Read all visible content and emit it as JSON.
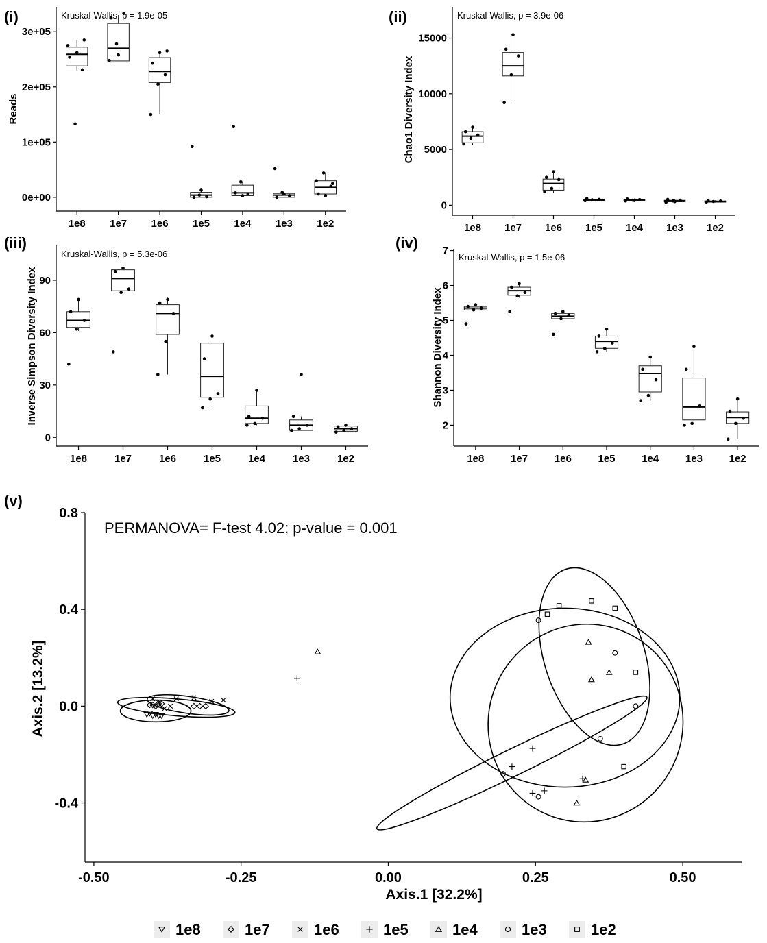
{
  "chart_data": [
    {
      "panel": "(i)",
      "type": "box",
      "annotation": "Kruskal-Wallis, p = 1.9e-05",
      "ylabel": "Reads",
      "xlabel": "",
      "categories": [
        "1e8",
        "1e7",
        "1e6",
        "1e5",
        "1e4",
        "1e3",
        "1e2"
      ],
      "ylim": [
        -25000,
        345000
      ],
      "yticks": [
        {
          "v": 0,
          "t": "0e+00"
        },
        {
          "v": 100000,
          "t": "1e+05"
        },
        {
          "v": 200000,
          "t": "2e+05"
        },
        {
          "v": 300000,
          "t": "3e+05"
        }
      ],
      "boxes": [
        {
          "q1": 238000,
          "med": 259000,
          "q3": 272000,
          "lo": 230000,
          "hi": 285000
        },
        {
          "q1": 247000,
          "med": 270000,
          "q3": 315000,
          "lo": 247000,
          "hi": 330000
        },
        {
          "q1": 208000,
          "med": 228000,
          "q3": 253000,
          "lo": 150000,
          "hi": 265000
        },
        {
          "q1": 0,
          "med": 4000,
          "q3": 9000,
          "lo": 0,
          "hi": 12000
        },
        {
          "q1": 3000,
          "med": 8000,
          "q3": 22000,
          "lo": 3000,
          "hi": 28000
        },
        {
          "q1": 0,
          "med": 4000,
          "q3": 7000,
          "lo": 0,
          "hi": 9000
        },
        {
          "q1": 6000,
          "med": 18000,
          "q3": 30000,
          "lo": 3000,
          "hi": 45000
        }
      ],
      "points": [
        [
          275000,
          133000,
          231000,
          254000,
          262000,
          285000
        ],
        [
          248000,
          278000,
          333000,
          325000,
          258000
        ],
        [
          150000,
          205000,
          222000,
          243000,
          262000,
          265000
        ],
        [
          92000,
          4000,
          1000,
          0,
          13000
        ],
        [
          128000,
          28000,
          6000,
          8000,
          3000
        ],
        [
          52000,
          9000,
          3000,
          0,
          6000
        ],
        [
          30000,
          44000,
          20000,
          6000,
          3000,
          25000
        ]
      ]
    },
    {
      "panel": "(ii)",
      "type": "box",
      "annotation": "Kruskal-Wallis, p = 3.9e-06",
      "ylabel": "Chao1 Diversity Index",
      "xlabel": "",
      "categories": [
        "1e8",
        "1e7",
        "1e6",
        "1e5",
        "1e4",
        "1e3",
        "1e2"
      ],
      "ylim": [
        -900,
        17800
      ],
      "yticks": [
        {
          "v": 0,
          "t": "0"
        },
        {
          "v": 5000,
          "t": "5000"
        },
        {
          "v": 10000,
          "t": "10000"
        },
        {
          "v": 15000,
          "t": "15000"
        }
      ],
      "boxes": [
        {
          "q1": 5600,
          "med": 6200,
          "q3": 6600,
          "lo": 5400,
          "hi": 7000
        },
        {
          "q1": 11600,
          "med": 12500,
          "q3": 13700,
          "lo": 9200,
          "hi": 15300
        },
        {
          "q1": 1350,
          "med": 1950,
          "q3": 2350,
          "lo": 1100,
          "hi": 2950
        },
        {
          "q1": 420,
          "med": 480,
          "q3": 540,
          "lo": 380,
          "hi": 620
        },
        {
          "q1": 380,
          "med": 460,
          "q3": 520,
          "lo": 320,
          "hi": 600
        },
        {
          "q1": 300,
          "med": 370,
          "q3": 440,
          "lo": 200,
          "hi": 540
        },
        {
          "q1": 270,
          "med": 320,
          "q3": 380,
          "lo": 230,
          "hi": 440
        }
      ],
      "points": [
        [
          5500,
          6000,
          6300,
          6600,
          7000
        ],
        [
          9200,
          11700,
          13400,
          14000,
          15300
        ],
        [
          1200,
          1500,
          2300,
          2500,
          3000
        ],
        [
          400,
          480,
          520,
          600
        ],
        [
          380,
          450,
          500,
          560,
          420
        ],
        [
          250,
          380,
          450,
          520,
          320
        ],
        [
          280,
          330,
          370,
          420
        ]
      ]
    },
    {
      "panel": "(iii)",
      "type": "box",
      "annotation": "Kruskal-Wallis, p = 5.3e-06",
      "ylabel": "Inverse Simpson Diversity Index",
      "xlabel": "",
      "categories": [
        "1e8",
        "1e7",
        "1e6",
        "1e5",
        "1e4",
        "1e3",
        "1e2"
      ],
      "ylim": [
        -5,
        110
      ],
      "yticks": [
        {
          "v": 0,
          "t": "0"
        },
        {
          "v": 30,
          "t": "30"
        },
        {
          "v": 60,
          "t": "60"
        },
        {
          "v": 90,
          "t": "90"
        }
      ],
      "boxes": [
        {
          "q1": 63,
          "med": 67,
          "q3": 72,
          "lo": 61,
          "hi": 79
        },
        {
          "q1": 84,
          "med": 91,
          "q3": 96,
          "lo": 83,
          "hi": 97
        },
        {
          "q1": 59,
          "med": 71,
          "q3": 76,
          "lo": 36,
          "hi": 80
        },
        {
          "q1": 23,
          "med": 35,
          "q3": 54,
          "lo": 17,
          "hi": 59
        },
        {
          "q1": 8,
          "med": 11,
          "q3": 18,
          "lo": 7,
          "hi": 27
        },
        {
          "q1": 4,
          "med": 7,
          "q3": 10,
          "lo": 4,
          "hi": 12
        },
        {
          "q1": 3.5,
          "med": 5,
          "q3": 6.5,
          "lo": 3,
          "hi": 7
        }
      ],
      "points": [
        [
          42,
          62,
          67,
          72,
          79
        ],
        [
          49,
          83,
          85,
          95,
          97
        ],
        [
          36,
          55,
          71,
          77,
          79
        ],
        [
          17,
          22,
          25,
          45,
          58
        ],
        [
          7,
          8,
          11,
          12,
          27
        ],
        [
          4,
          5,
          7,
          12,
          36
        ],
        [
          3,
          4,
          5,
          6,
          7
        ]
      ]
    },
    {
      "panel": "(iv)",
      "type": "box",
      "annotation": "Kruskal-Wallis, p = 1.5e-06",
      "ylabel": "Shannon Diversity Index",
      "xlabel": "",
      "categories": [
        "1e8",
        "1e7",
        "1e6",
        "1e5",
        "1e4",
        "1e3",
        "1e2"
      ],
      "ylim": [
        1.4,
        7.05
      ],
      "yticks": [
        {
          "v": 2,
          "t": "2"
        },
        {
          "v": 3,
          "t": "3"
        },
        {
          "v": 4,
          "t": "4"
        },
        {
          "v": 5,
          "t": "5"
        },
        {
          "v": 6,
          "t": "6"
        },
        {
          "v": 7,
          "t": "7"
        }
      ],
      "boxes": [
        {
          "q1": 5.3,
          "med": 5.35,
          "q3": 5.4,
          "lo": 5.3,
          "hi": 5.45
        },
        {
          "q1": 5.72,
          "med": 5.85,
          "q3": 5.95,
          "lo": 5.65,
          "hi": 6.05
        },
        {
          "q1": 5.05,
          "med": 5.12,
          "q3": 5.2,
          "lo": 5.0,
          "hi": 5.25
        },
        {
          "q1": 4.2,
          "med": 4.4,
          "q3": 4.55,
          "lo": 4.1,
          "hi": 4.75
        },
        {
          "q1": 2.95,
          "med": 3.48,
          "q3": 3.7,
          "lo": 2.7,
          "hi": 3.95
        },
        {
          "q1": 2.15,
          "med": 2.52,
          "q3": 3.35,
          "lo": 2.0,
          "hi": 4.25
        },
        {
          "q1": 2.05,
          "med": 2.22,
          "q3": 2.38,
          "lo": 1.6,
          "hi": 2.75
        }
      ],
      "points": [
        [
          4.9,
          5.3,
          5.35,
          5.4,
          5.45
        ],
        [
          5.25,
          5.7,
          5.8,
          5.95,
          6.05
        ],
        [
          4.6,
          5.05,
          5.15,
          5.2,
          5.25
        ],
        [
          4.1,
          4.2,
          4.35,
          4.55,
          4.75
        ],
        [
          2.7,
          2.85,
          3.3,
          3.6,
          3.95
        ],
        [
          2.0,
          2.05,
          2.55,
          3.6,
          4.25
        ],
        [
          1.6,
          2.05,
          2.2,
          2.4,
          2.75
        ]
      ]
    },
    {
      "panel": "(v)",
      "type": "scatter",
      "annotation": "PERMANOVA= F-test 4.02; p-value = 0.001",
      "xlabel": "Axis.1   [32.2%]",
      "ylabel": "Axis.2   [13.2%]",
      "xlim": [
        -0.515,
        0.6
      ],
      "ylim": [
        -0.645,
        0.8
      ],
      "xticks": [
        {
          "v": -0.5,
          "t": "-0.50"
        },
        {
          "v": -0.25,
          "t": "-0.25"
        },
        {
          "v": 0.0,
          "t": "0.00"
        },
        {
          "v": 0.25,
          "t": "0.25"
        },
        {
          "v": 0.5,
          "t": "0.50"
        }
      ],
      "yticks": [
        {
          "v": -0.4,
          "t": "-0.4"
        },
        {
          "v": 0.0,
          "t": "0.0"
        },
        {
          "v": 0.4,
          "t": "0.4"
        },
        {
          "v": 0.8,
          "t": "0.8"
        }
      ],
      "legend_position": "bottom",
      "series": [
        {
          "name": "1e8",
          "marker": "triangle-down",
          "points": [
            [
              -0.41,
              -0.035
            ],
            [
              -0.405,
              -0.03
            ],
            [
              -0.4,
              -0.04
            ],
            [
              -0.395,
              -0.035
            ],
            [
              -0.39,
              -0.04
            ],
            [
              -0.385,
              -0.04
            ]
          ]
        },
        {
          "name": "1e7",
          "marker": "diamond",
          "points": [
            [
              -0.405,
              0.005
            ],
            [
              -0.4,
              0.005
            ],
            [
              -0.395,
              0.0
            ],
            [
              -0.39,
              0.01
            ],
            [
              -0.385,
              0.01
            ],
            [
              -0.33,
              0.0
            ],
            [
              -0.32,
              0.0
            ],
            [
              -0.31,
              0.0
            ]
          ]
        },
        {
          "name": "1e6",
          "marker": "x",
          "points": [
            [
              -0.4,
              0.03
            ],
            [
              -0.39,
              0.015
            ],
            [
              -0.38,
              -0.01
            ],
            [
              -0.37,
              0.0
            ],
            [
              -0.36,
              0.03
            ],
            [
              -0.33,
              0.035
            ],
            [
              -0.3,
              0.02
            ],
            [
              -0.28,
              0.025
            ]
          ]
        },
        {
          "name": "1e5",
          "marker": "plus",
          "points": [
            [
              -0.155,
              0.115
            ],
            [
              0.245,
              -0.175
            ],
            [
              0.21,
              -0.25
            ],
            [
              0.245,
              -0.36
            ],
            [
              0.265,
              -0.35
            ],
            [
              0.33,
              -0.3
            ]
          ]
        },
        {
          "name": "1e4",
          "marker": "triangle-up",
          "points": [
            [
              -0.12,
              0.225
            ],
            [
              0.34,
              0.265
            ],
            [
              0.345,
              0.11
            ],
            [
              0.375,
              0.14
            ],
            [
              0.335,
              -0.305
            ],
            [
              0.32,
              -0.4
            ]
          ]
        },
        {
          "name": "1e3",
          "marker": "circle",
          "points": [
            [
              0.255,
              0.355
            ],
            [
              0.385,
              0.22
            ],
            [
              0.42,
              0.0
            ],
            [
              0.36,
              -0.135
            ],
            [
              0.195,
              -0.28
            ],
            [
              0.255,
              -0.375
            ]
          ]
        },
        {
          "name": "1e2",
          "marker": "square",
          "points": [
            [
              0.27,
              0.38
            ],
            [
              0.29,
              0.415
            ],
            [
              0.345,
              0.435
            ],
            [
              0.385,
              0.405
            ],
            [
              0.42,
              0.14
            ],
            [
              0.4,
              -0.25
            ]
          ]
        }
      ],
      "ellipses": [
        {
          "cx": -0.395,
          "cy": -0.02,
          "rx": 0.06,
          "ry": 0.045,
          "angle": 0
        },
        {
          "cx": -0.36,
          "cy": -0.005,
          "rx": 0.1,
          "ry": 0.035,
          "angle": 5
        },
        {
          "cx": -0.34,
          "cy": 0.005,
          "rx": 0.07,
          "ry": 0.035,
          "angle": 8
        },
        {
          "cx": 0.21,
          "cy": -0.235,
          "rx": 0.255,
          "ry": 0.055,
          "angle": -26
        },
        {
          "cx": 0.3,
          "cy": 0.035,
          "rx": 0.195,
          "ry": 0.37,
          "angle": 0
        },
        {
          "cx": 0.35,
          "cy": 0.205,
          "rx": 0.085,
          "ry": 0.38,
          "angle": -18
        },
        {
          "cx": 0.335,
          "cy": -0.07,
          "rx": 0.165,
          "ry": 0.41,
          "angle": 22
        }
      ]
    }
  ]
}
